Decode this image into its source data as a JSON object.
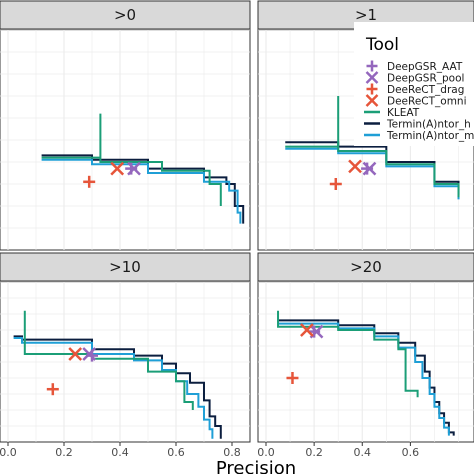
{
  "chart_data": {
    "type": "line",
    "xlabel": "Precision",
    "ylabel": "",
    "xlim": [
      0.0,
      0.86
    ],
    "ylim": [
      0.0,
      1.0
    ],
    "grid": true,
    "legend_position": "right (inside top-right panel)",
    "x_tick_labels": [
      "0.0",
      "0.2",
      "0.4",
      "0.6",
      "0.8"
    ],
    "x_ticks_left_panels": [
      0.0,
      0.2,
      0.4,
      0.6,
      0.8
    ],
    "x_ticks_right_panels": [
      0.0,
      0.2,
      0.4,
      0.6
    ],
    "legend": {
      "title": "Tool",
      "entries": [
        {
          "label": "DeepGSR_AAT",
          "marker": "plus",
          "color": "#9467bd"
        },
        {
          "label": "DeepGSR_pool",
          "marker": "x",
          "color": "#9467bd"
        },
        {
          "label": "DeeReCT_drag",
          "marker": "plus",
          "color": "#e6553a"
        },
        {
          "label": "DeeReCT_omni",
          "marker": "x",
          "color": "#e6553a"
        },
        {
          "label": "KLEAT",
          "marker": "line",
          "color": "#1b9e77"
        },
        {
          "label": "Termin(A)ntor_h",
          "marker": "line",
          "color": "#0b1e3f"
        },
        {
          "label": "Termin(A)ntor_m",
          "marker": "line",
          "color": "#1f9fd6"
        }
      ]
    },
    "colors": {
      "deepgsr": "#9467bd",
      "deerect": "#e6553a",
      "kleat": "#1b9e77",
      "terminator_h": "#0b1e3f",
      "terminator_m": "#1f9fd6",
      "strip_bg": "#d9d9d9",
      "grid": "#ebebeb"
    },
    "panels": [
      {
        "label": ">0",
        "points": [
          {
            "tool": "DeepGSR_AAT",
            "marker": "plus",
            "x": 0.44,
            "y": 0.37
          },
          {
            "tool": "DeepGSR_pool",
            "marker": "x",
            "x": 0.45,
            "y": 0.37
          },
          {
            "tool": "DeeReCT_drag",
            "marker": "plus",
            "x": 0.29,
            "y": 0.31
          },
          {
            "tool": "DeeReCT_omni",
            "marker": "x",
            "x": 0.39,
            "y": 0.37
          }
        ],
        "series": [
          {
            "tool": "Termin(A)ntor_h",
            "x": [
              0.12,
              0.3,
              0.5,
              0.7,
              0.78,
              0.81,
              0.84
            ],
            "y": [
              0.43,
              0.41,
              0.37,
              0.33,
              0.3,
              0.2,
              0.12
            ]
          },
          {
            "tool": "Termin(A)ntor_m",
            "x": [
              0.12,
              0.3,
              0.5,
              0.7,
              0.79,
              0.82,
              0.83
            ],
            "y": [
              0.41,
              0.39,
              0.35,
              0.31,
              0.27,
              0.17,
              0.12
            ]
          },
          {
            "tool": "KLEAT",
            "x": [
              0.12,
              0.33,
              0.33,
              0.33,
              0.55,
              0.72,
              0.76
            ],
            "y": [
              0.42,
              0.4,
              0.62,
              0.4,
              0.36,
              0.3,
              0.2
            ]
          }
        ]
      },
      {
        "label": ">1",
        "points": [
          {
            "tool": "DeepGSR_AAT",
            "marker": "plus",
            "x": 0.42,
            "y": 0.37
          },
          {
            "tool": "DeepGSR_pool",
            "marker": "x",
            "x": 0.43,
            "y": 0.37
          },
          {
            "tool": "DeeReCT_drag",
            "marker": "plus",
            "x": 0.29,
            "y": 0.3
          },
          {
            "tool": "DeeReCT_omni",
            "marker": "x",
            "x": 0.37,
            "y": 0.38
          }
        ],
        "series": [
          {
            "tool": "Termin(A)ntor_h",
            "x": [
              0.08,
              0.3,
              0.5,
              0.7,
              0.8
            ],
            "y": [
              0.49,
              0.47,
              0.4,
              0.31,
              0.25
            ]
          },
          {
            "tool": "Termin(A)ntor_m",
            "x": [
              0.08,
              0.3,
              0.5,
              0.7,
              0.8
            ],
            "y": [
              0.46,
              0.44,
              0.38,
              0.29,
              0.23
            ]
          },
          {
            "tool": "KLEAT",
            "x": [
              0.08,
              0.3,
              0.3,
              0.3,
              0.5,
              0.7,
              0.8
            ],
            "y": [
              0.47,
              0.45,
              0.7,
              0.45,
              0.39,
              0.3,
              0.24
            ]
          }
        ]
      },
      {
        "label": ">10",
        "points": [
          {
            "tool": "DeepGSR_AAT",
            "marker": "plus",
            "x": 0.3,
            "y": 0.54
          },
          {
            "tool": "DeepGSR_pool",
            "marker": "x",
            "x": 0.29,
            "y": 0.55
          },
          {
            "tool": "DeeReCT_drag",
            "marker": "plus",
            "x": 0.16,
            "y": 0.33
          },
          {
            "tool": "DeeReCT_omni",
            "marker": "x",
            "x": 0.24,
            "y": 0.55
          }
        ],
        "series": [
          {
            "tool": "Termin(A)ntor_h",
            "x": [
              0.02,
              0.05,
              0.05,
              0.3,
              0.45,
              0.55,
              0.6,
              0.65,
              0.7,
              0.72,
              0.74,
              0.76,
              0.76
            ],
            "y": [
              0.66,
              0.66,
              0.64,
              0.58,
              0.54,
              0.49,
              0.43,
              0.37,
              0.26,
              0.16,
              0.1,
              0.05,
              0.02
            ]
          },
          {
            "tool": "Termin(A)ntor_m",
            "x": [
              0.02,
              0.05,
              0.05,
              0.3,
              0.45,
              0.55,
              0.6,
              0.64,
              0.68,
              0.7,
              0.72,
              0.73,
              0.73
            ],
            "y": [
              0.65,
              0.65,
              0.62,
              0.55,
              0.51,
              0.45,
              0.38,
              0.3,
              0.22,
              0.14,
              0.08,
              0.05,
              0.02
            ]
          },
          {
            "tool": "KLEAT",
            "x": [
              0.06,
              0.06,
              0.06,
              0.3,
              0.5,
              0.6,
              0.63,
              0.63,
              0.66,
              0.66
            ],
            "y": [
              0.55,
              0.82,
              0.55,
              0.52,
              0.44,
              0.38,
              0.32,
              0.25,
              0.25,
              0.2
            ]
          }
        ]
      },
      {
        "label": ">20",
        "points": [
          {
            "tool": "DeepGSR_AAT",
            "marker": "plus",
            "x": 0.2,
            "y": 0.69
          },
          {
            "tool": "DeepGSR_pool",
            "marker": "x",
            "x": 0.21,
            "y": 0.69
          },
          {
            "tool": "DeeReCT_drag",
            "marker": "plus",
            "x": 0.11,
            "y": 0.4
          },
          {
            "tool": "DeeReCT_omni",
            "marker": "x",
            "x": 0.17,
            "y": 0.7
          }
        ],
        "series": [
          {
            "tool": "Termin(A)ntor_h",
            "x": [
              0.05,
              0.1,
              0.3,
              0.45,
              0.55,
              0.62,
              0.66,
              0.68,
              0.7,
              0.72,
              0.74,
              0.76,
              0.78
            ],
            "y": [
              0.76,
              0.76,
              0.73,
              0.68,
              0.62,
              0.54,
              0.44,
              0.34,
              0.25,
              0.18,
              0.12,
              0.06,
              0.04
            ]
          },
          {
            "tool": "Termin(A)ntor_m",
            "x": [
              0.05,
              0.1,
              0.3,
              0.45,
              0.55,
              0.62,
              0.65,
              0.68,
              0.7,
              0.72,
              0.74,
              0.76,
              0.76
            ],
            "y": [
              0.74,
              0.74,
              0.71,
              0.66,
              0.59,
              0.5,
              0.4,
              0.3,
              0.22,
              0.15,
              0.09,
              0.05,
              0.04
            ]
          },
          {
            "tool": "KLEAT",
            "x": [
              0.05,
              0.05,
              0.05,
              0.3,
              0.45,
              0.55,
              0.58,
              0.58,
              0.63,
              0.63
            ],
            "y": [
              0.72,
              0.82,
              0.72,
              0.7,
              0.64,
              0.58,
              0.5,
              0.32,
              0.32,
              0.28
            ]
          }
        ]
      }
    ]
  }
}
